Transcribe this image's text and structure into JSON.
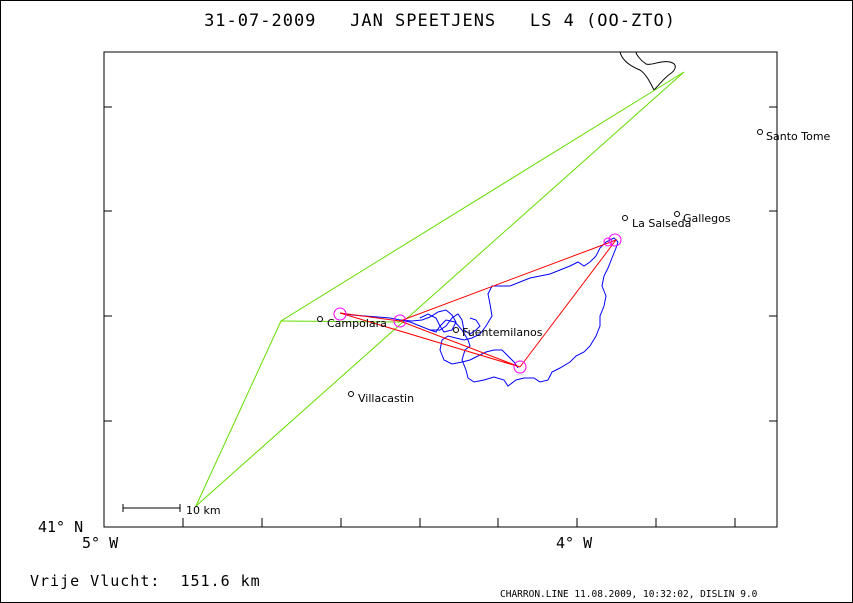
{
  "title": "31-07-2009   JAN SPEETJENS   LS 4 (OO-ZTO)",
  "axes": {
    "lat_label": "41° N",
    "lon_label_left": "5° W",
    "lon_label_right": "4° W"
  },
  "scale_bar": {
    "label": "10 km"
  },
  "places": [
    {
      "name": "Santo Tome"
    },
    {
      "name": "Gallegos"
    },
    {
      "name": "La Salseda"
    },
    {
      "name": "Campolara"
    },
    {
      "name": "Fuentemilanos"
    },
    {
      "name": "Villacastin"
    }
  ],
  "distance_text": "Vrije Vlucht:  151.6 km",
  "footer": "CHARRON.LINE 11.08.2009, 10:32:02, DISLIN 9.0",
  "colors": {
    "track": "#0000ff",
    "triangle": "#ff0000",
    "task": "#66dd00",
    "turnpoint": "#ff00ff",
    "frame": "#000000"
  }
}
